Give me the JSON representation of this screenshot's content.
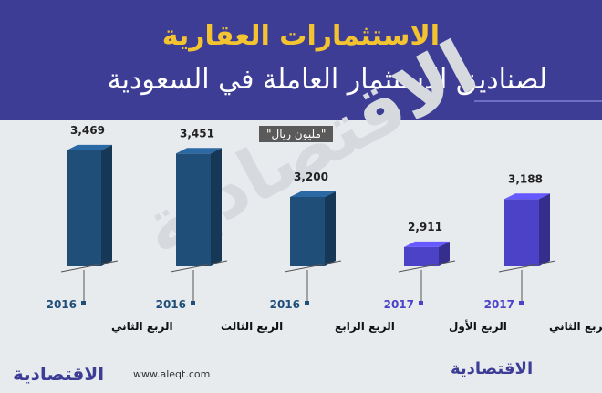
{
  "header": {
    "title": "الاستثمارات العقارية",
    "subtitle": "لصناديق الاستثمار العاملة في السعودية"
  },
  "unit": "\"مليون ريال\"",
  "watermark": "الاقتصادية",
  "footer": {
    "url": "www.aleqt.com",
    "logo_left": "الاقتصادية",
    "logo_right": "الاقتصادية"
  },
  "colors": {
    "header_bg": "#3d3d96",
    "title": "#f4c430",
    "bar_2016": "#1f4e79",
    "bar_2017": "#4b42c8",
    "year_2016": "#1f4e79",
    "year_2017": "#4b42c8"
  },
  "chart_data": {
    "type": "bar",
    "title": "الاستثمارات العقارية",
    "ylabel": "مليون ريال",
    "categories": [
      {
        "quarter": "الربع الثاني",
        "year": "2016"
      },
      {
        "quarter": "الربع الثالث",
        "year": "2016"
      },
      {
        "quarter": "الربع الرابع",
        "year": "2016"
      },
      {
        "quarter": "الربع الأول",
        "year": "2017"
      },
      {
        "quarter": "الربع الثاني",
        "year": "2017"
      }
    ],
    "values": [
      3469,
      3451,
      3200,
      2911,
      3188
    ],
    "labels": [
      "3,469",
      "3,451",
      "3,200",
      "2,911",
      "3,188"
    ],
    "scale": "broken axis (bars cut by break marks)",
    "ylim": [
      2800,
      3500
    ]
  }
}
